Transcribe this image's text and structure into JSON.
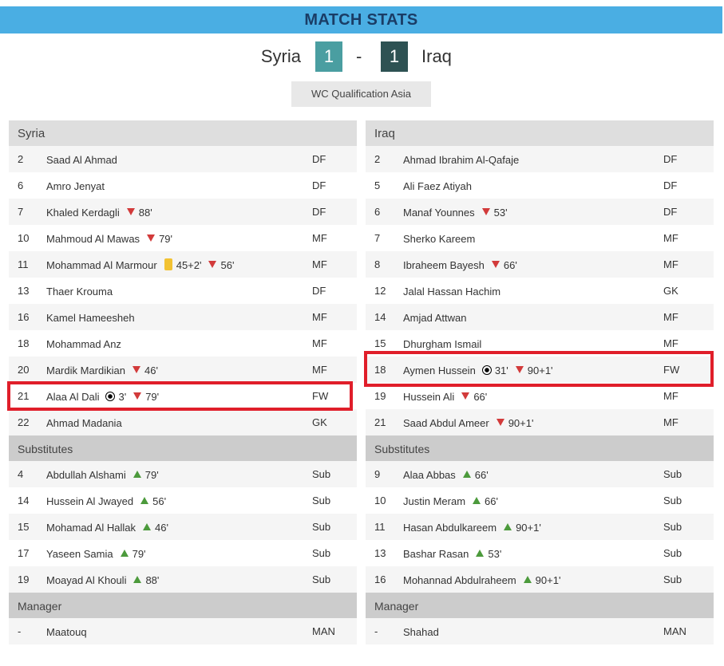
{
  "header": {
    "title": "MATCH STATS"
  },
  "match": {
    "home_team": "Syria",
    "away_team": "Iraq",
    "home_score": "1",
    "away_score": "1",
    "separator": "-",
    "competition": "WC Qualification Asia"
  },
  "colors": {
    "header_bg": "#4aaee3",
    "home_score_bg": "#4a9ea1",
    "away_score_bg": "#2e5253",
    "highlight": "#e01e2a",
    "sub_off": "#d23a3a",
    "sub_on": "#4c9a3c",
    "yellow_card": "#f2c232"
  },
  "labels": {
    "substitutes": "Substitutes",
    "manager": "Manager"
  },
  "home": {
    "team_label": "Syria",
    "lineup": [
      {
        "num": "2",
        "name": "Saad Al Ahmad",
        "pos": "DF",
        "events": []
      },
      {
        "num": "6",
        "name": "Amro Jenyat",
        "pos": "DF",
        "events": []
      },
      {
        "num": "7",
        "name": "Khaled Kerdagli",
        "pos": "DF",
        "events": [
          {
            "icon": "sub-off-icon",
            "minute": "88'"
          }
        ]
      },
      {
        "num": "10",
        "name": "Mahmoud Al Mawas",
        "pos": "MF",
        "events": [
          {
            "icon": "sub-off-icon",
            "minute": "79'"
          }
        ]
      },
      {
        "num": "11",
        "name": "Mohammad Al Marmour",
        "pos": "MF",
        "events": [
          {
            "icon": "yellow-card-icon",
            "minute": "45+2'"
          },
          {
            "icon": "sub-off-icon",
            "minute": "56'"
          }
        ]
      },
      {
        "num": "13",
        "name": "Thaer Krouma",
        "pos": "DF",
        "events": []
      },
      {
        "num": "16",
        "name": "Kamel Hameesheh",
        "pos": "MF",
        "events": []
      },
      {
        "num": "18",
        "name": "Mohammad Anz",
        "pos": "MF",
        "events": []
      },
      {
        "num": "20",
        "name": "Mardik Mardikian",
        "pos": "MF",
        "events": [
          {
            "icon": "sub-off-icon",
            "minute": "46'"
          }
        ]
      },
      {
        "num": "21",
        "name": "Alaa Al Dali",
        "pos": "FW",
        "events": [
          {
            "icon": "goal-icon",
            "minute": "3'"
          },
          {
            "icon": "sub-off-icon",
            "minute": "79'"
          }
        ]
      },
      {
        "num": "22",
        "name": "Ahmad Madania",
        "pos": "GK",
        "events": []
      }
    ],
    "substitutes": [
      {
        "num": "4",
        "name": "Abdullah Alshami",
        "pos": "Sub",
        "events": [
          {
            "icon": "sub-on-icon",
            "minute": "79'"
          }
        ]
      },
      {
        "num": "14",
        "name": "Hussein Al Jwayed",
        "pos": "Sub",
        "events": [
          {
            "icon": "sub-on-icon",
            "minute": "56'"
          }
        ]
      },
      {
        "num": "15",
        "name": "Mohamad Al Hallak",
        "pos": "Sub",
        "events": [
          {
            "icon": "sub-on-icon",
            "minute": "46'"
          }
        ]
      },
      {
        "num": "17",
        "name": "Yaseen Samia",
        "pos": "Sub",
        "events": [
          {
            "icon": "sub-on-icon",
            "minute": "79'"
          }
        ]
      },
      {
        "num": "19",
        "name": "Moayad Al Khouli",
        "pos": "Sub",
        "events": [
          {
            "icon": "sub-on-icon",
            "minute": "88'"
          }
        ]
      }
    ],
    "manager": {
      "num": "-",
      "name": "Maatouq",
      "pos": "MAN"
    }
  },
  "away": {
    "team_label": "Iraq",
    "lineup": [
      {
        "num": "2",
        "name": "Ahmad Ibrahim Al-Qafaje",
        "pos": "DF",
        "events": []
      },
      {
        "num": "5",
        "name": "Ali Faez Atiyah",
        "pos": "DF",
        "events": []
      },
      {
        "num": "6",
        "name": "Manaf Younnes",
        "pos": "DF",
        "events": [
          {
            "icon": "sub-off-icon",
            "minute": "53'"
          }
        ]
      },
      {
        "num": "7",
        "name": "Sherko Kareem",
        "pos": "MF",
        "events": []
      },
      {
        "num": "8",
        "name": "Ibraheem Bayesh",
        "pos": "MF",
        "events": [
          {
            "icon": "sub-off-icon",
            "minute": "66'"
          }
        ]
      },
      {
        "num": "12",
        "name": "Jalal Hassan Hachim",
        "pos": "GK",
        "events": []
      },
      {
        "num": "14",
        "name": "Amjad Attwan",
        "pos": "MF",
        "events": []
      },
      {
        "num": "15",
        "name": "Dhurgham Ismail",
        "pos": "MF",
        "events": []
      },
      {
        "num": "18",
        "name": "Aymen Hussein",
        "pos": "FW",
        "events": [
          {
            "icon": "goal-icon",
            "minute": "31'"
          },
          {
            "icon": "sub-off-icon",
            "minute": "90+1'"
          }
        ]
      },
      {
        "num": "19",
        "name": "Hussein Ali",
        "pos": "MF",
        "events": [
          {
            "icon": "sub-off-icon",
            "minute": "66'"
          }
        ]
      },
      {
        "num": "21",
        "name": "Saad Abdul Ameer",
        "pos": "MF",
        "events": [
          {
            "icon": "sub-off-icon",
            "minute": "90+1'"
          }
        ]
      }
    ],
    "substitutes": [
      {
        "num": "9",
        "name": "Alaa Abbas",
        "pos": "Sub",
        "events": [
          {
            "icon": "sub-on-icon",
            "minute": "66'"
          }
        ]
      },
      {
        "num": "10",
        "name": "Justin Meram",
        "pos": "Sub",
        "events": [
          {
            "icon": "sub-on-icon",
            "minute": "66'"
          }
        ]
      },
      {
        "num": "11",
        "name": "Hasan Abdulkareem",
        "pos": "Sub",
        "events": [
          {
            "icon": "sub-on-icon",
            "minute": "90+1'"
          }
        ]
      },
      {
        "num": "13",
        "name": "Bashar Rasan",
        "pos": "Sub",
        "events": [
          {
            "icon": "sub-on-icon",
            "minute": "53'"
          }
        ]
      },
      {
        "num": "16",
        "name": "Mohannad Abdulraheem",
        "pos": "Sub",
        "events": [
          {
            "icon": "sub-on-icon",
            "minute": "90+1'"
          }
        ]
      }
    ],
    "manager": {
      "num": "-",
      "name": "Shahad",
      "pos": "MAN"
    }
  }
}
